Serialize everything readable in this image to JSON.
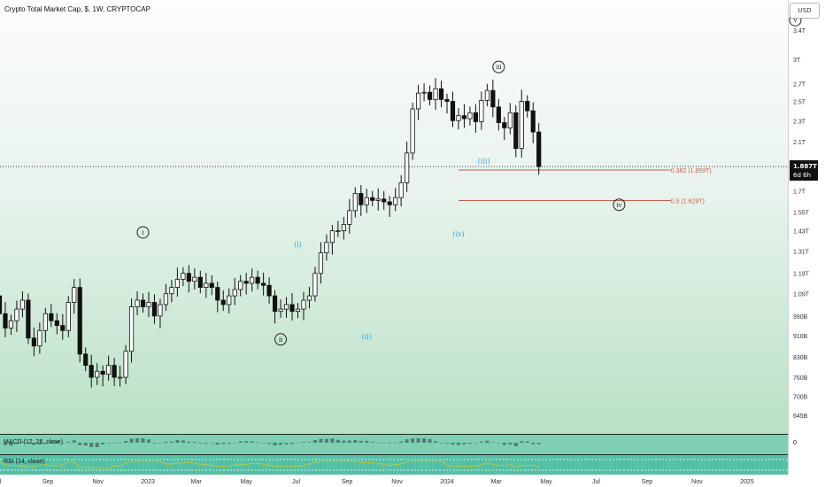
{
  "header": {
    "title": "Crypto Total Market Cap, $, 1W, CRYPTOCAP",
    "currency_button": "USD"
  },
  "price_tag": {
    "value": "1.887T",
    "countdown": "6d 6h"
  },
  "panes": {
    "macd_label": "MACD (12, 26, close)",
    "macd_zero": "0",
    "rsi_label": "RSI (14, close)"
  },
  "colors": {
    "gradient_top": "#fdfdfd",
    "gradient_bottom": "#b8e1c4",
    "candle_up": "#ffffff",
    "candle_down": "#111111",
    "fib_line": "#c06050",
    "wave_major": "#222222",
    "wave_minor": "#3aa8d8",
    "rsi_line": "#b4c940"
  },
  "chart_data": {
    "type": "candlestick",
    "title": "Crypto Total Market Cap, $, 1W, CRYPTOCAP",
    "y_scale": "log",
    "y_ticks": [
      "3.4T",
      "3T",
      "2.7T",
      "2.5T",
      "2.3T",
      "2.1T",
      "1.9T",
      "1.7T",
      "1.55T",
      "1.43T",
      "1.31T",
      "1.19T",
      "1.09T",
      "990B",
      "910B",
      "830B",
      "760B",
      "700B",
      "645B"
    ],
    "y_tick_values": [
      3400,
      3000,
      2700,
      2500,
      2300,
      2100,
      1900,
      1700,
      1550,
      1430,
      1310,
      1190,
      1090,
      990,
      910,
      830,
      760,
      700,
      645
    ],
    "x_ticks": [
      "Jul",
      "Sep",
      "Nov",
      "2023",
      "Mar",
      "May",
      "Jul",
      "Sep",
      "Nov",
      "2024",
      "Mar",
      "May",
      "Jul",
      "Sep",
      "Nov",
      "2025"
    ],
    "start_date": "2022-05-23",
    "step_days": 7,
    "close_values": [
      850,
      930,
      1010,
      1070,
      1130,
      1080,
      1000,
      940,
      970,
      1020,
      1060,
      900,
      870,
      930,
      1000,
      970,
      950,
      930,
      1050,
      1120,
      840,
      800,
      760,
      780,
      770,
      800,
      760,
      760,
      850,
      1030,
      1060,
      1030,
      1050,
      990,
      1040,
      1090,
      1120,
      1160,
      1190,
      1150,
      1170,
      1120,
      1140,
      1120,
      1060,
      1040,
      1080,
      1110,
      1150,
      1140,
      1170,
      1140,
      1130,
      1080,
      1010,
      1020,
      1040,
      1010,
      1020,
      1060,
      1080,
      1190,
      1300,
      1360,
      1430,
      1430,
      1470,
      1560,
      1680,
      1600,
      1650,
      1630,
      1640,
      1620,
      1600,
      1650,
      1760,
      2000,
      2420,
      2590,
      2600,
      2520,
      2640,
      2520,
      2500,
      2300,
      2350,
      2320,
      2380,
      2290,
      2510,
      2620,
      2440,
      2280,
      2230,
      2380,
      2040,
      2500,
      2400,
      2190,
      1887
    ],
    "fib_levels": [
      {
        "label": "0.382 (1.859T)",
        "value": 1859
      },
      {
        "label": "0.5 (1.629T)",
        "value": 1629
      }
    ],
    "wave_labels": [
      {
        "text": "i",
        "style": "major",
        "x": "2022-12-26",
        "y": 1420
      },
      {
        "text": "ii",
        "style": "major",
        "x": "2023-06-12",
        "y": 895
      },
      {
        "text": "iii",
        "style": "major",
        "x": "2024-03-04",
        "y": 2900
      },
      {
        "text": "iv",
        "style": "major",
        "x": "2024-07-29",
        "y": 1600
      },
      {
        "text": "v",
        "style": "major",
        "x": "2025-03-01",
        "y": 3550
      },
      {
        "text": "(i)",
        "style": "minor",
        "x": "2023-07-03",
        "y": 1345
      },
      {
        "text": "(ii)",
        "style": "minor",
        "x": "2023-09-25",
        "y": 905
      },
      {
        "text": "(iii)",
        "style": "minor",
        "x": "2024-02-15",
        "y": 1930
      },
      {
        "text": "(iv)",
        "style": "minor",
        "x": "2024-01-15",
        "y": 1410
      }
    ],
    "current_price": 1887
  }
}
